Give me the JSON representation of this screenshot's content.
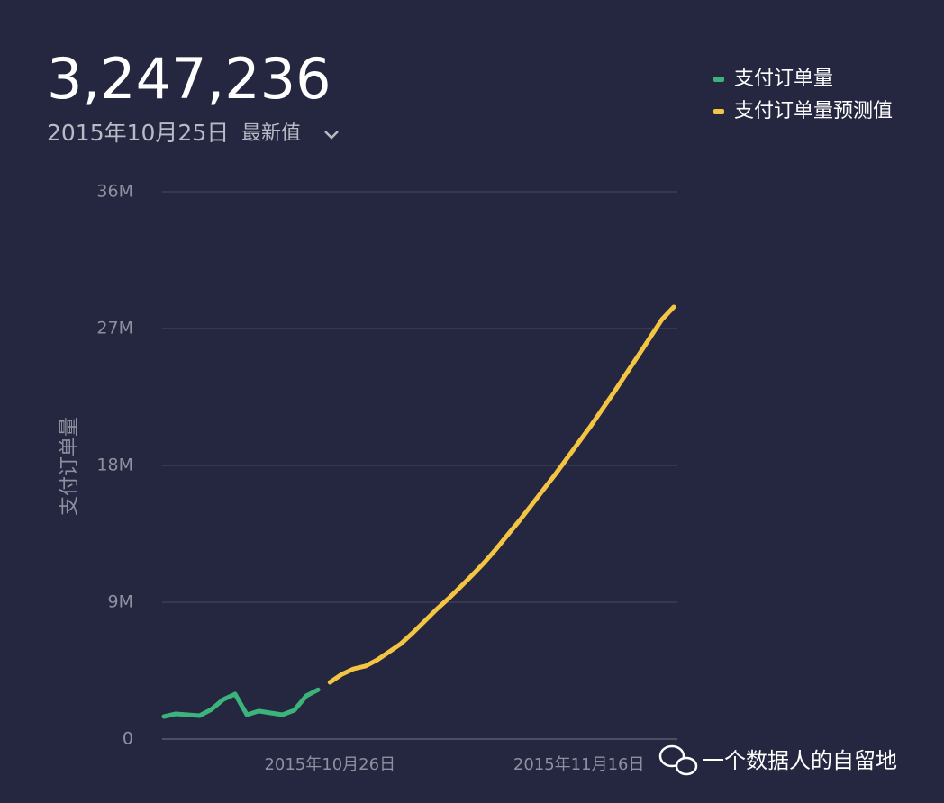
{
  "header": {
    "value": "3,247,236",
    "date": "2015年10月25日",
    "selector": "最新值"
  },
  "watermark": "一个数据人的自留地",
  "chart_data": {
    "type": "line",
    "y_label": "支付订单量",
    "categories": [
      null,
      null,
      null,
      null,
      null,
      null,
      null,
      null,
      null,
      null,
      null,
      null,
      null,
      null,
      "2015年10月26日",
      null,
      null,
      null,
      null,
      null,
      null,
      null,
      null,
      null,
      null,
      null,
      null,
      null,
      null,
      null,
      null,
      null,
      null,
      null,
      null,
      "2015年11月16日",
      null,
      null,
      null,
      null,
      null,
      null,
      null,
      null
    ],
    "series": [
      {
        "name": "支付订单量",
        "color": "#3bb37a",
        "values": [
          1480000,
          1660000,
          1600000,
          1540000,
          1950000,
          2600000,
          2960000,
          1600000,
          1840000,
          1720000,
          1600000,
          1900000,
          2840000,
          3247236,
          null,
          null,
          null,
          null,
          null,
          null,
          null,
          null,
          null,
          null,
          null,
          null,
          null,
          null,
          null,
          null,
          null,
          null,
          null,
          null,
          null,
          null,
          null,
          null,
          null,
          null,
          null,
          null,
          null,
          null
        ]
      },
      {
        "name": "支付订单量预测值",
        "color": "#f4c542",
        "values": [
          null,
          null,
          null,
          null,
          null,
          null,
          null,
          null,
          null,
          null,
          null,
          null,
          null,
          null,
          3730000,
          4260000,
          4620000,
          4800000,
          5210000,
          5740000,
          6280000,
          6990000,
          7760000,
          8530000,
          9240000,
          10000000,
          10780000,
          11600000,
          12490000,
          13440000,
          14390000,
          15390000,
          16400000,
          17410000,
          18470000,
          19540000,
          20600000,
          21730000,
          22860000,
          24040000,
          25220000,
          26410000,
          27590000,
          28420000
        ]
      }
    ],
    "ylim": [
      0,
      36000000
    ],
    "yticks": [
      {
        "value": 0,
        "label": "0"
      },
      {
        "value": 9000000,
        "label": "9M"
      },
      {
        "value": 18000000,
        "label": "18M"
      },
      {
        "value": 27000000,
        "label": "27M"
      },
      {
        "value": 36000000,
        "label": "36M"
      }
    ],
    "grid": true,
    "legend": "top-right"
  }
}
